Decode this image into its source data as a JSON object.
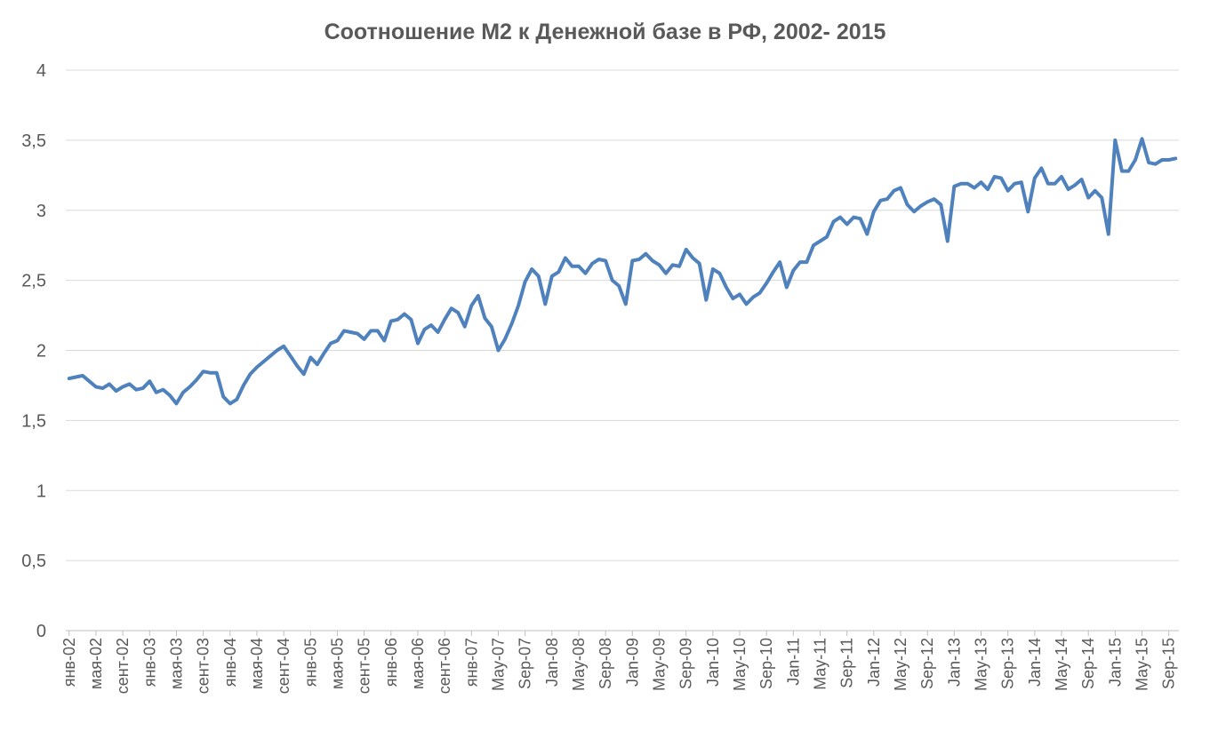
{
  "chart_data": {
    "type": "line",
    "title": "Соотношение М2 к Денежной базе в РФ, 2002- 2015",
    "xlabel": "",
    "ylabel": "",
    "ylim": [
      0,
      4
    ],
    "y_ticks": [
      "0",
      "0,5",
      "1",
      "1,5",
      "2",
      "2,5",
      "3",
      "3,5",
      "4"
    ],
    "grid": true,
    "legend": "none",
    "series_color": "#4f81bd",
    "x_tick_labels": [
      "янв-02",
      "мая-02",
      "сент-02",
      "янв-03",
      "мая-03",
      "сент-03",
      "янв-04",
      "мая-04",
      "сент-04",
      "янв-05",
      "мая-05",
      "сент-05",
      "янв-06",
      "мая-06",
      "сент-06",
      "янв-07",
      "May-07",
      "Sep-07",
      "Jan-08",
      "May-08",
      "Sep-08",
      "Jan-09",
      "May-09",
      "Sep-09",
      "Jan-10",
      "May-10",
      "Sep-10",
      "Jan-11",
      "May-11",
      "Sep-11",
      "Jan-12",
      "May-12",
      "Sep-12",
      "Jan-13",
      "May-13",
      "Sep-13",
      "Jan-14",
      "May-14",
      "Sep-14",
      "Jan-15",
      "May-15",
      "Sep-15"
    ],
    "series": [
      {
        "values": [
          1.8,
          1.81,
          1.82,
          1.78,
          1.74,
          1.73,
          1.76,
          1.71,
          1.74,
          1.76,
          1.72,
          1.73,
          1.78,
          1.7,
          1.72,
          1.68,
          1.62,
          1.7,
          1.74,
          1.79,
          1.85,
          1.84,
          1.84,
          1.67,
          1.62,
          1.65,
          1.75,
          1.83,
          1.88,
          1.92,
          1.96,
          2.0,
          2.03,
          1.96,
          1.89,
          1.83,
          1.95,
          1.9,
          1.98,
          2.05,
          2.07,
          2.14,
          2.13,
          2.12,
          2.08,
          2.14,
          2.14,
          2.07,
          2.21,
          2.22,
          2.26,
          2.22,
          2.05,
          2.15,
          2.18,
          2.13,
          2.22,
          2.3,
          2.27,
          2.17,
          2.32,
          2.39,
          2.23,
          2.17,
          2.0,
          2.08,
          2.19,
          2.32,
          2.49,
          2.58,
          2.53,
          2.33,
          2.53,
          2.56,
          2.66,
          2.6,
          2.6,
          2.55,
          2.62,
          2.65,
          2.64,
          2.5,
          2.46,
          2.33,
          2.64,
          2.65,
          2.69,
          2.64,
          2.61,
          2.55,
          2.61,
          2.6,
          2.72,
          2.66,
          2.62,
          2.36,
          2.58,
          2.55,
          2.45,
          2.37,
          2.4,
          2.33,
          2.38,
          2.41,
          2.48,
          2.56,
          2.63,
          2.45,
          2.57,
          2.63,
          2.63,
          2.75,
          2.78,
          2.81,
          2.92,
          2.95,
          2.9,
          2.95,
          2.94,
          2.83,
          2.99,
          3.07,
          3.08,
          3.14,
          3.16,
          3.04,
          2.99,
          3.03,
          3.06,
          3.08,
          3.04,
          2.78,
          3.17,
          3.19,
          3.19,
          3.16,
          3.2,
          3.15,
          3.24,
          3.23,
          3.14,
          3.19,
          3.2,
          2.99,
          3.23,
          3.3,
          3.19,
          3.19,
          3.24,
          3.15,
          3.18,
          3.22,
          3.09,
          3.14,
          3.09,
          2.83,
          3.5,
          3.28,
          3.28,
          3.36,
          3.51,
          3.34,
          3.33,
          3.36,
          3.36,
          3.37
        ]
      }
    ]
  }
}
